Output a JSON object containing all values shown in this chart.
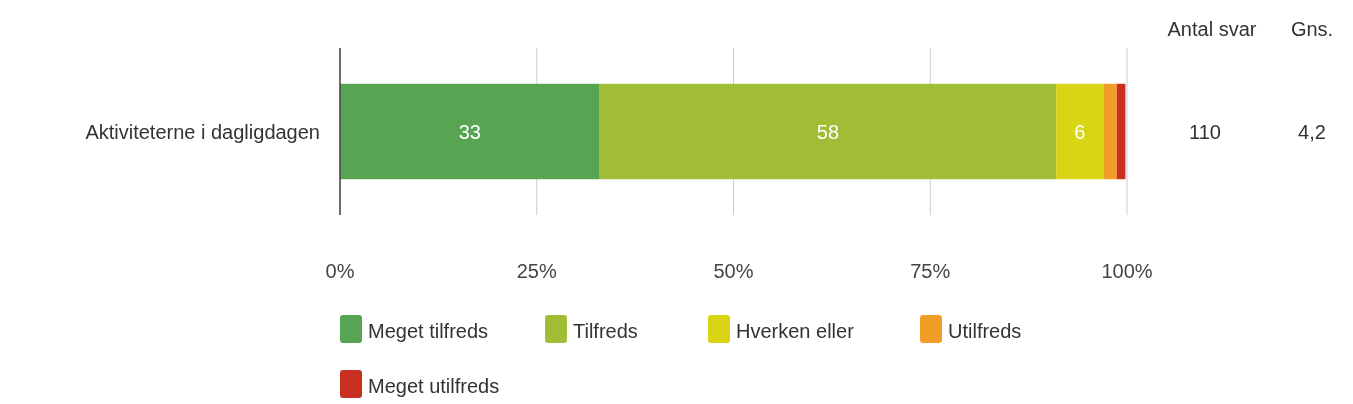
{
  "chart_data": {
    "type": "bar",
    "orientation": "horizontal",
    "stacked": true,
    "categories": [
      "Aktiviteterne i dagligdagen"
    ],
    "series": [
      {
        "name": "Meget tilfreds",
        "color": "#57a553",
        "values": [
          33
        ],
        "value_labels": [
          "33"
        ]
      },
      {
        "name": "Tilfreds",
        "color": "#a0bd35",
        "values": [
          58
        ],
        "value_labels": [
          "58"
        ]
      },
      {
        "name": "Hverken eller",
        "color": "#d9d515",
        "values": [
          6
        ],
        "value_labels": [
          "6"
        ]
      },
      {
        "name": "Utilfreds",
        "color": "#f19d27",
        "values": [
          1.7
        ],
        "value_labels": [
          null
        ]
      },
      {
        "name": "Meget utilfreds",
        "color": "#c9301f",
        "values": [
          1.1
        ],
        "value_labels": [
          null
        ]
      }
    ],
    "xlim": [
      0,
      100
    ],
    "xticks": [
      {
        "value": 0,
        "label": "0%"
      },
      {
        "value": 25,
        "label": "25%"
      },
      {
        "value": 50,
        "label": "50%"
      },
      {
        "value": 75,
        "label": "75%"
      },
      {
        "value": 100,
        "label": "100%"
      }
    ],
    "grid": "x",
    "legend": "bottom",
    "annotations": [
      "Antal svar",
      "110",
      "Gns.",
      "4,2"
    ]
  }
}
